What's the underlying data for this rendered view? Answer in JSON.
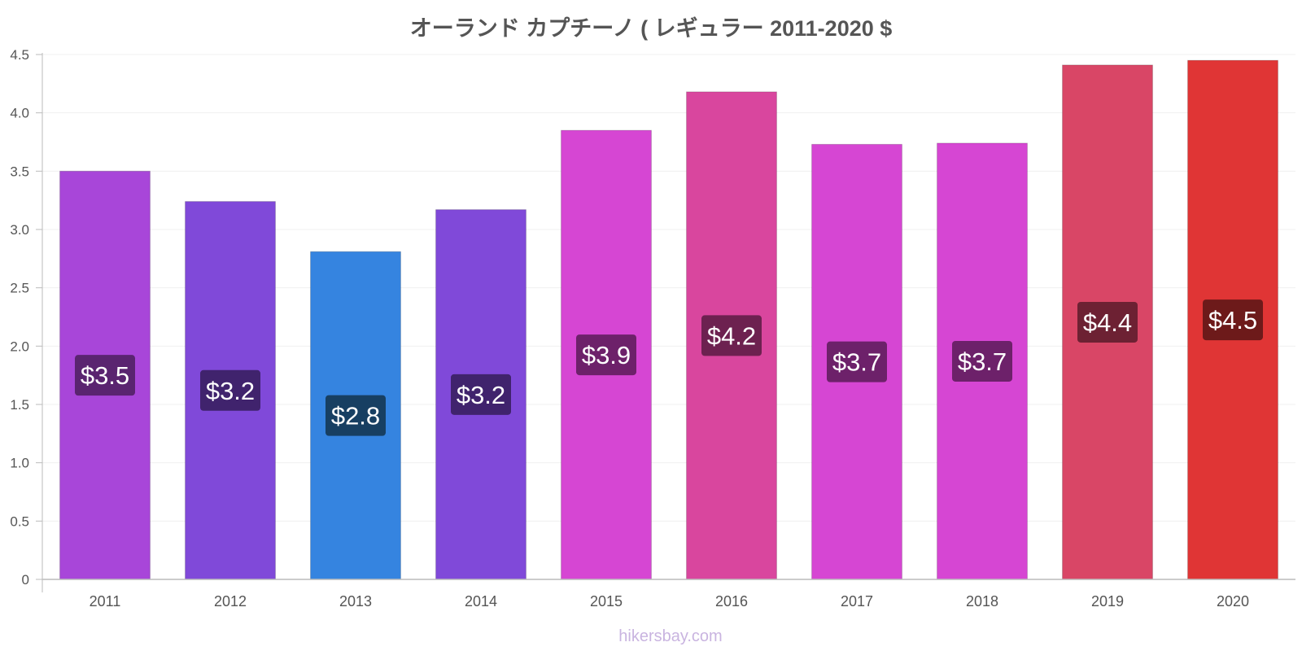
{
  "chart_data": {
    "type": "bar",
    "title": "オーランド カプチーノ ( レギュラー 2011-2020 $",
    "xlabel": "",
    "ylabel": "",
    "ylim": [
      0,
      4.5
    ],
    "yticks": [
      "0",
      "0.5",
      "1.0",
      "1.5",
      "2.0",
      "2.5",
      "3.0",
      "3.5",
      "4.0",
      "4.5"
    ],
    "grid": true,
    "categories": [
      "2011",
      "2012",
      "2013",
      "2014",
      "2015",
      "2016",
      "2017",
      "2018",
      "2019",
      "2020"
    ],
    "values": [
      3.5,
      3.24,
      2.81,
      3.17,
      3.85,
      4.18,
      3.73,
      3.74,
      4.41,
      4.45
    ],
    "data_labels": [
      "$3.5",
      "$3.2",
      "$2.8",
      "$3.2",
      "$3.9",
      "$4.2",
      "$3.7",
      "$3.7",
      "$4.4",
      "$4.5"
    ],
    "bar_colors": [
      "#a846d9",
      "#8049d9",
      "#3584e0",
      "#8049d9",
      "#d646d3",
      "#d9469e",
      "#d646d3",
      "#d646d3",
      "#d94666",
      "#e03535"
    ],
    "label_bg_colors": [
      "#5a2470",
      "#40236d",
      "#173f62",
      "#40236d",
      "#6d216a",
      "#6d2150",
      "#6d216a",
      "#6d216a",
      "#6d2133",
      "#6d1a1a"
    ]
  },
  "watermark": "hikersbay.com"
}
